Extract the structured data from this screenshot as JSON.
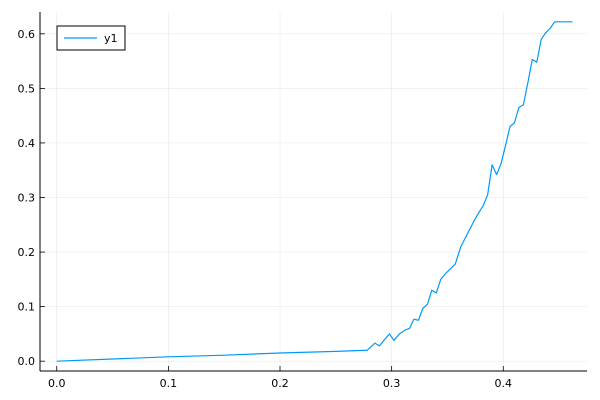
{
  "chart_data": {
    "type": "line",
    "title": "",
    "xlabel": "",
    "ylabel": "",
    "xlim": [
      -0.015,
      0.475
    ],
    "ylim": [
      -0.018,
      0.64
    ],
    "grid": true,
    "legend_position": "top-left",
    "x_ticks": [
      0.0,
      0.1,
      0.2,
      0.3,
      0.4
    ],
    "x_tick_labels": [
      "0.0",
      "0.1",
      "0.2",
      "0.3",
      "0.4"
    ],
    "y_ticks": [
      0.0,
      0.1,
      0.2,
      0.3,
      0.4,
      0.5,
      0.6
    ],
    "y_tick_labels": [
      "0.0",
      "0.1",
      "0.2",
      "0.3",
      "0.4",
      "0.5",
      "0.6"
    ],
    "series": [
      {
        "name": "y1",
        "color": "#009af9",
        "x": [
          0.0,
          0.05,
          0.1,
          0.15,
          0.2,
          0.25,
          0.278,
          0.285,
          0.289,
          0.293,
          0.298,
          0.302,
          0.307,
          0.312,
          0.316,
          0.32,
          0.324,
          0.328,
          0.332,
          0.336,
          0.34,
          0.344,
          0.348,
          0.352,
          0.357,
          0.362,
          0.366,
          0.37,
          0.374,
          0.378,
          0.382,
          0.386,
          0.39,
          0.394,
          0.398,
          0.402,
          0.406,
          0.41,
          0.414,
          0.418,
          0.422,
          0.426,
          0.43,
          0.434,
          0.438,
          0.442,
          0.446,
          0.45,
          0.454,
          0.458,
          0.462
        ],
        "values": [
          0.0,
          0.004,
          0.008,
          0.011,
          0.015,
          0.018,
          0.02,
          0.033,
          0.028,
          0.038,
          0.05,
          0.038,
          0.05,
          0.057,
          0.06,
          0.077,
          0.075,
          0.097,
          0.104,
          0.13,
          0.125,
          0.15,
          0.16,
          0.168,
          0.178,
          0.21,
          0.226,
          0.242,
          0.258,
          0.272,
          0.285,
          0.305,
          0.36,
          0.342,
          0.362,
          0.395,
          0.43,
          0.437,
          0.465,
          0.47,
          0.51,
          0.553,
          0.548,
          0.59,
          0.602,
          0.61,
          0.622,
          0.622,
          0.622,
          0.622,
          0.622
        ]
      }
    ]
  }
}
